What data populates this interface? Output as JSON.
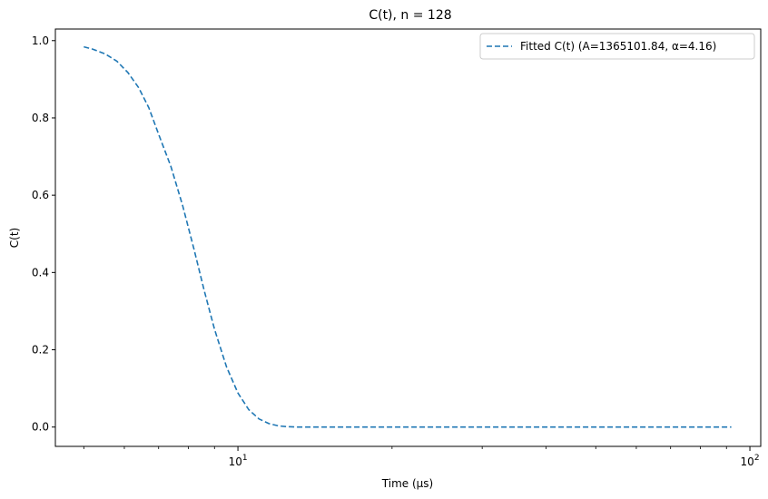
{
  "chart_data": {
    "type": "line",
    "title": "C(t), n = 128",
    "xlabel": "Time (μs)",
    "ylabel": "C(t)",
    "xscale": "log",
    "xlim": [
      4.4,
      105
    ],
    "ylim": [
      -0.05,
      1.03
    ],
    "xticks_major": [
      {
        "value": 10,
        "base": "10",
        "exp": "1"
      },
      {
        "value": 100,
        "base": "10",
        "exp": "2"
      }
    ],
    "yticks": [
      "0.0",
      "0.2",
      "0.4",
      "0.6",
      "0.8",
      "1.0"
    ],
    "grid": false,
    "legend_position": "top-right",
    "series": [
      {
        "name": "Fitted C(t) (A=1365101.84, α=4.16)",
        "color": "#1f77b4",
        "style": "dashed",
        "x": [
          5.0,
          5.2,
          5.5,
          5.8,
          6.1,
          6.4,
          6.7,
          7.0,
          7.4,
          7.8,
          8.2,
          8.6,
          9.0,
          9.5,
          10.0,
          10.5,
          11.0,
          11.5,
          12.0,
          12.5,
          13.0,
          14.0,
          16.0,
          20.0,
          30.0,
          50.0,
          70.0,
          92.0
        ],
        "y": [
          0.984,
          0.978,
          0.966,
          0.947,
          0.917,
          0.878,
          0.826,
          0.758,
          0.674,
          0.573,
          0.462,
          0.352,
          0.253,
          0.156,
          0.088,
          0.045,
          0.021,
          0.009,
          0.003,
          0.001,
          0.0,
          0.0,
          0.0,
          0.0,
          0.0,
          0.0,
          0.0,
          0.0
        ]
      }
    ]
  }
}
